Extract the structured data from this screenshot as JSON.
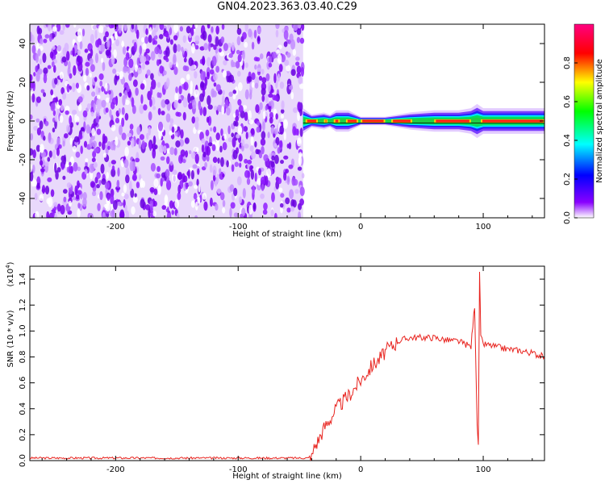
{
  "figure": {
    "title": "GN04.2023.363.03.40.C29"
  },
  "chart_data": [
    {
      "type": "heatmap",
      "title": "",
      "xlabel": "Height of straight line (km)",
      "ylabel": "Frequency (Hz)",
      "xlim": [
        -270,
        150
      ],
      "ylim": [
        -50,
        50
      ],
      "xticks": [
        -200,
        -100,
        0,
        100
      ],
      "yticks": [
        -40,
        -20,
        0,
        20,
        40
      ],
      "noise_region_x": [
        -270,
        -47
      ],
      "signal_profile": {
        "x": [
          -47,
          -40,
          -30,
          -25,
          -20,
          -10,
          0,
          20,
          30,
          40,
          60,
          80,
          90,
          95,
          100,
          110,
          130,
          150
        ],
        "halfwidth_hz": [
          3,
          1.5,
          2,
          1.5,
          2.5,
          2.5,
          1,
          1,
          1.5,
          2,
          2.5,
          2.5,
          3,
          4,
          3,
          3,
          3,
          3
        ]
      },
      "colorbar": {
        "label": "Normalized spectral amplitude",
        "ticks": [
          0.0,
          0.2,
          0.4,
          0.6,
          0.8
        ],
        "range": [
          0,
          1
        ],
        "colormap": [
          "#ffffff",
          "#8a00ff",
          "#0000ff",
          "#00ffff",
          "#00ff00",
          "#ffff00",
          "#ff0000",
          "#ff0080"
        ]
      }
    },
    {
      "type": "line",
      "title": "",
      "xlabel": "Height of straight line (km)",
      "ylabel": "SNR (10 * v/v)",
      "yscale_label": "(x10",
      "yscale_exp": "4",
      "yscale_close": ")",
      "xlim": [
        -270,
        150
      ],
      "ylim": [
        0,
        1.5
      ],
      "xticks": [
        -200,
        -100,
        0,
        100
      ],
      "yticks": [
        0.0,
        0.2,
        0.4,
        0.6,
        0.8,
        1.0,
        1.2,
        1.4
      ],
      "series": [
        {
          "color": "#e8231e",
          "x": [
            -270,
            -200,
            -100,
            -40,
            -38,
            -35,
            -30,
            -25,
            -20,
            -15,
            -10,
            -5,
            0,
            5,
            10,
            15,
            20,
            30,
            40,
            50,
            60,
            70,
            80,
            85,
            90,
            93,
            95,
            96,
            97,
            98,
            100,
            110,
            120,
            130,
            140,
            150
          ],
          "y": [
            0.02,
            0.02,
            0.02,
            0.02,
            0.1,
            0.15,
            0.25,
            0.32,
            0.4,
            0.45,
            0.5,
            0.56,
            0.62,
            0.68,
            0.74,
            0.78,
            0.84,
            0.92,
            0.95,
            0.95,
            0.95,
            0.93,
            0.92,
            0.9,
            0.88,
            1.2,
            0.3,
            0.1,
            1.45,
            0.95,
            0.9,
            0.88,
            0.86,
            0.85,
            0.83,
            0.8
          ]
        }
      ]
    }
  ]
}
